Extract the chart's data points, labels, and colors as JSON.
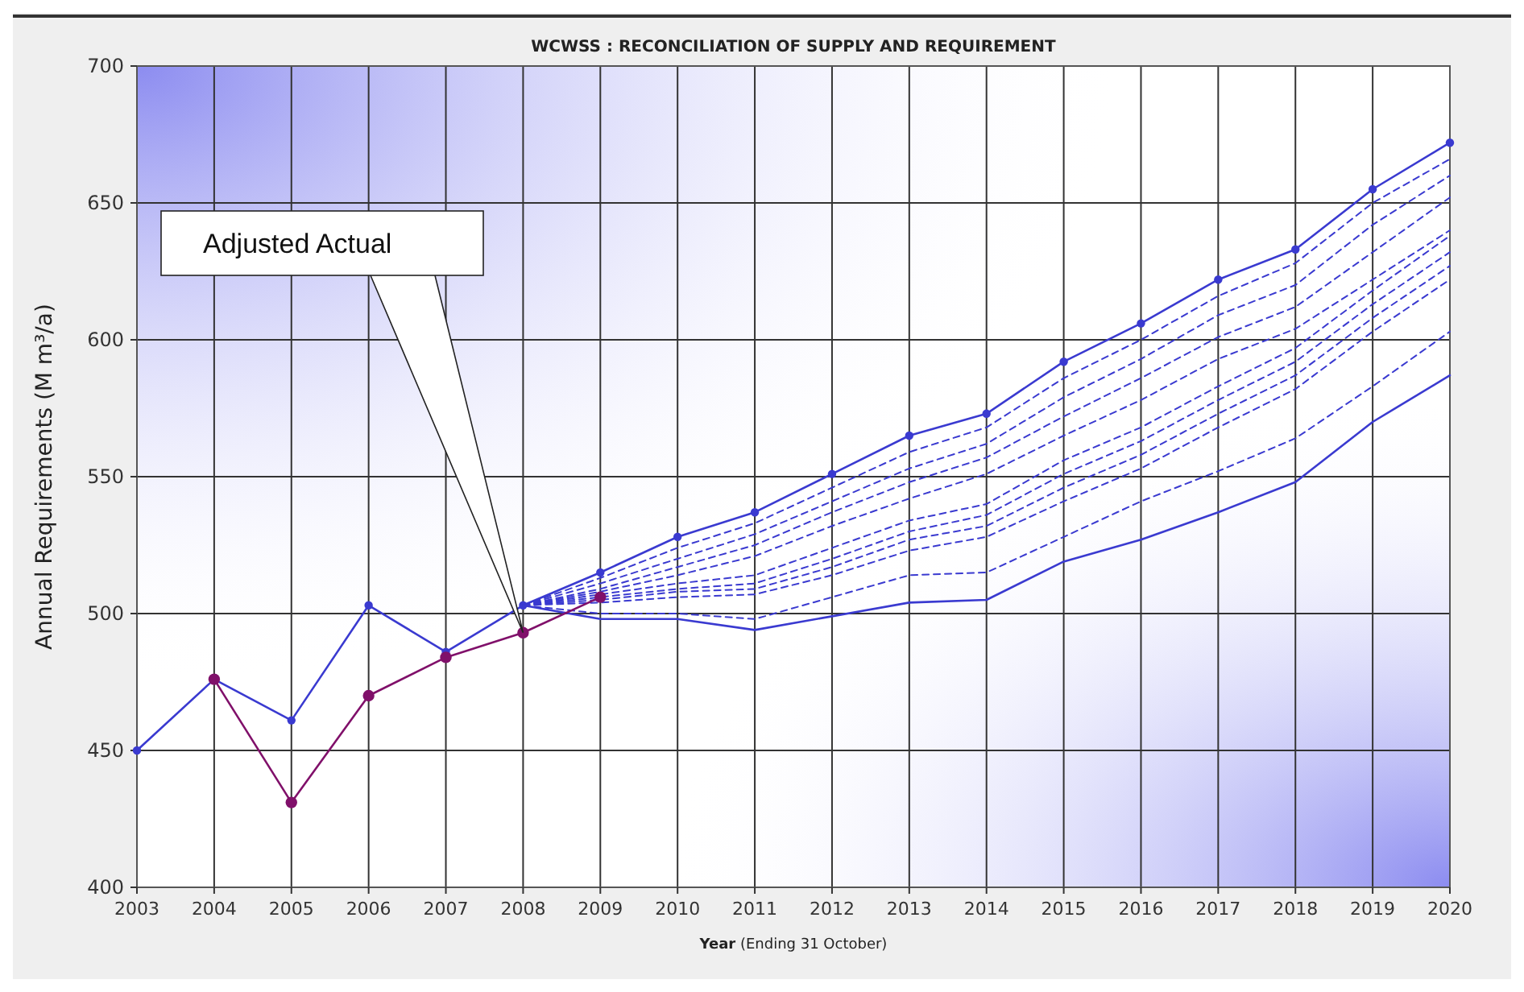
{
  "chart_data": {
    "type": "line",
    "title": "WCWSS : RECONCILIATION OF SUPPLY AND REQUIREMENT",
    "xlabel": "Year (Ending 31 October)",
    "ylabel": "Annual Requirements (M m³/a)",
    "xlim": [
      2003,
      2020
    ],
    "xticks": [
      2003,
      2004,
      2005,
      2006,
      2007,
      2008,
      2009,
      2010,
      2011,
      2012,
      2013,
      2014,
      2015,
      2016,
      2017,
      2018,
      2019,
      2020
    ],
    "ylim": [
      400,
      700
    ],
    "yticks": [
      400,
      450,
      500,
      550,
      600,
      650,
      700
    ],
    "grid": true,
    "annotations": [
      {
        "text": "Adjusted Actual",
        "x": 2008,
        "y": 493
      }
    ],
    "series": [
      {
        "color": "#3a3ad0",
        "marker": "circle",
        "line_style": "solid",
        "x": [
          2003,
          2004,
          2005,
          2006,
          2007,
          2008,
          2009,
          2010,
          2011,
          2012,
          2013,
          2014,
          2015,
          2016,
          2017,
          2018,
          2019,
          2020
        ],
        "values": [
          450,
          476,
          461,
          503,
          486,
          503,
          515,
          528,
          537,
          551,
          565,
          573,
          592,
          606,
          622,
          633,
          655,
          672
        ]
      },
      {
        "color": "#3a3ad0",
        "marker": "none",
        "line_style": "solid",
        "x": [
          2008,
          2009,
          2010,
          2011,
          2012,
          2013,
          2014,
          2015,
          2016,
          2017,
          2018,
          2019,
          2020
        ],
        "values": [
          503,
          498,
          498,
          494,
          499,
          504,
          505,
          519,
          527,
          537,
          548,
          570,
          587
        ]
      },
      {
        "color": "#3a3ad0",
        "marker": "none",
        "line_style": "dashed",
        "x": [
          2008,
          2009,
          2010,
          2011,
          2012,
          2013,
          2014,
          2015,
          2016,
          2017,
          2018,
          2019,
          2020
        ],
        "values": [
          503,
          513,
          524,
          533,
          546,
          559,
          568,
          586,
          600,
          616,
          628,
          650,
          666
        ]
      },
      {
        "color": "#3a3ad0",
        "marker": "none",
        "line_style": "dashed",
        "x": [
          2008,
          2009,
          2010,
          2011,
          2012,
          2013,
          2014,
          2015,
          2016,
          2017,
          2018,
          2019,
          2020
        ],
        "values": [
          503,
          511,
          520,
          529,
          541,
          553,
          562,
          579,
          593,
          609,
          620,
          642,
          660
        ]
      },
      {
        "color": "#3a3ad0",
        "marker": "none",
        "line_style": "dashed",
        "x": [
          2008,
          2009,
          2010,
          2011,
          2012,
          2013,
          2014,
          2015,
          2016,
          2017,
          2018,
          2019,
          2020
        ],
        "values": [
          503,
          509,
          517,
          525,
          537,
          548,
          557,
          572,
          586,
          601,
          612,
          632,
          652
        ]
      },
      {
        "color": "#3a3ad0",
        "marker": "none",
        "line_style": "dashed",
        "x": [
          2008,
          2009,
          2010,
          2011,
          2012,
          2013,
          2014,
          2015,
          2016,
          2017,
          2018,
          2019,
          2020
        ],
        "values": [
          503,
          508,
          514,
          521,
          532,
          542,
          551,
          565,
          578,
          593,
          604,
          622,
          640
        ]
      },
      {
        "color": "#3a3ad0",
        "marker": "none",
        "line_style": "dashed",
        "x": [
          2008,
          2009,
          2010,
          2011,
          2012,
          2013,
          2014,
          2015,
          2016,
          2017,
          2018,
          2019,
          2020
        ],
        "values": [
          503,
          507,
          511,
          514,
          524,
          534,
          540,
          556,
          568,
          583,
          597,
          618,
          638
        ]
      },
      {
        "color": "#3a3ad0",
        "marker": "none",
        "line_style": "dashed",
        "x": [
          2008,
          2009,
          2010,
          2011,
          2012,
          2013,
          2014,
          2015,
          2016,
          2017,
          2018,
          2019,
          2020
        ],
        "values": [
          503,
          506,
          509,
          511,
          520,
          530,
          536,
          551,
          563,
          578,
          592,
          613,
          632
        ]
      },
      {
        "color": "#3a3ad0",
        "marker": "none",
        "line_style": "dashed",
        "x": [
          2008,
          2009,
          2010,
          2011,
          2012,
          2013,
          2014,
          2015,
          2016,
          2017,
          2018,
          2019,
          2020
        ],
        "values": [
          503,
          505,
          508,
          509,
          517,
          527,
          532,
          546,
          558,
          573,
          587,
          608,
          627
        ]
      },
      {
        "color": "#3a3ad0",
        "marker": "none",
        "line_style": "dashed",
        "x": [
          2008,
          2009,
          2010,
          2011,
          2012,
          2013,
          2014,
          2015,
          2016,
          2017,
          2018,
          2019,
          2020
        ],
        "values": [
          503,
          504,
          506,
          507,
          514,
          523,
          528,
          541,
          553,
          568,
          582,
          603,
          622
        ]
      },
      {
        "color": "#3a3ad0",
        "marker": "none",
        "line_style": "dashed",
        "x": [
          2008,
          2009,
          2010,
          2011,
          2012,
          2013,
          2014,
          2015,
          2016,
          2017,
          2018,
          2019,
          2020
        ],
        "values": [
          503,
          500,
          500,
          498,
          506,
          514,
          515,
          528,
          541,
          552,
          564,
          583,
          603
        ]
      },
      {
        "color": "#80106a",
        "marker": "circle",
        "line_style": "solid",
        "x": [
          2004,
          2005,
          2006,
          2007,
          2008,
          2009
        ],
        "values": [
          476,
          431,
          470,
          484,
          493,
          506
        ]
      }
    ]
  }
}
